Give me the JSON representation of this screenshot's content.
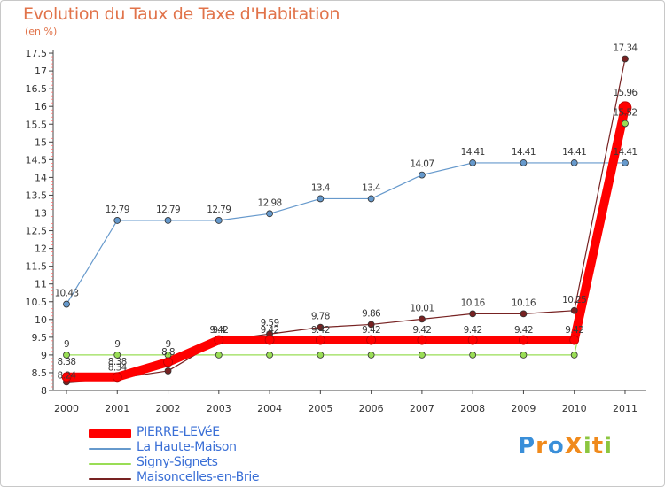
{
  "page": {
    "title": "Evolution du Taux de Taxe d'Habitation",
    "subtitle": "(en %)",
    "logo": "ProXiti"
  },
  "chart_data": {
    "type": "line",
    "title": "Evolution du Taux de Taxe d'Habitation",
    "subtitle": "(en %)",
    "xlabel": "",
    "ylabel": "",
    "x": [
      "2000",
      "2001",
      "2002",
      "2003",
      "2004",
      "2005",
      "2006",
      "2007",
      "2008",
      "2009",
      "2010",
      "2011"
    ],
    "ylim": [
      8,
      17.5
    ],
    "yticks": [
      "8",
      "8.5",
      "9",
      "9.5",
      "10",
      "10.5",
      "11",
      "11.5",
      "12",
      "12.5",
      "13",
      "13.5",
      "14",
      "14.5",
      "15",
      "15.5",
      "16",
      "16.5",
      "17",
      "17.5"
    ],
    "grid": false,
    "legend_position": "bottom-left",
    "series": [
      {
        "name": "PIERRE-LEVéE",
        "color": "#ff0000",
        "values": [
          8.38,
          8.38,
          8.8,
          9.42,
          9.42,
          9.42,
          9.42,
          9.42,
          9.42,
          9.42,
          9.42,
          15.96
        ],
        "labels": [
          "8.38",
          "8.38",
          "8.8",
          "9.42",
          "9.42",
          "9.42",
          "9.42",
          "9.42",
          "9.42",
          "9.42",
          "9.42",
          "15.96"
        ]
      },
      {
        "name": "La Haute-Maison",
        "color": "#6699cc",
        "values": [
          10.43,
          12.79,
          12.79,
          12.79,
          12.98,
          13.4,
          13.4,
          14.07,
          14.41,
          14.41,
          14.41,
          14.41
        ],
        "labels": [
          "10.43",
          "12.79",
          "12.79",
          "12.79",
          "12.98",
          "13.4",
          "13.4",
          "14.07",
          "14.41",
          "14.41",
          "14.41",
          "14.41"
        ]
      },
      {
        "name": "Signy-Signets",
        "color": "#99dd55",
        "values": [
          9,
          9,
          9,
          9,
          9,
          9,
          9,
          9,
          9,
          9,
          9,
          15.52
        ],
        "labels": [
          "9",
          "9",
          "9",
          "",
          "",
          "",
          "",
          "",
          "",
          "",
          "",
          "15.52"
        ]
      },
      {
        "name": "Maisoncelles-en-Brie",
        "color": "#772222",
        "values": [
          8.24,
          8.34,
          8.55,
          9.4,
          9.59,
          9.78,
          9.86,
          10.01,
          10.16,
          10.16,
          10.25,
          17.34
        ],
        "labels": [
          "8.24",
          "8.34",
          "",
          "9.4",
          "9.59",
          "9.78",
          "9.86",
          "10.01",
          "10.16",
          "10.16",
          "10.25",
          "17.34"
        ]
      }
    ]
  }
}
